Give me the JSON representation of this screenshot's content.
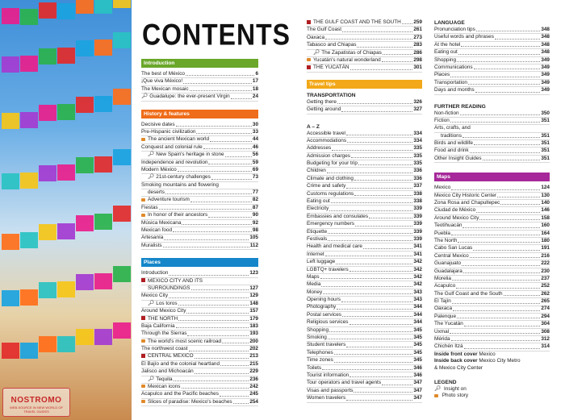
{
  "watermark": {
    "line1": "NOSTROMO",
    "line2": "WEB-SOURCE IN NEW WORLD OF TRAVEL GUIDES"
  },
  "title": "CONTENTS",
  "colors": {
    "introduction": "#6aa72a",
    "history": "#ef6c1a",
    "places": "#1586c9",
    "travel_tips": "#f2a818",
    "maps": "#a6289a",
    "region_marker": "#b01e23"
  },
  "introduction": {
    "heading": "Introduction",
    "entries": [
      {
        "label": "The best of México",
        "page": "6"
      },
      {
        "label": "¡Que viva México!",
        "page": "17"
      },
      {
        "label": "The Mexican mosaic",
        "page": "18"
      },
      {
        "label": "Guadalupe: the ever-present Virgin",
        "page": "24",
        "icon": "pin"
      }
    ]
  },
  "history": {
    "heading": "History & features",
    "entries": [
      {
        "label": "Decisive dates",
        "page": "30"
      },
      {
        "label": "Pre-Hispanic civilization",
        "page": "33"
      },
      {
        "label": "The ancient Mexican world",
        "page": "44",
        "icon": "camera"
      },
      {
        "label": "Conquest and colonial rule",
        "page": "46"
      },
      {
        "label": "New Spain's heritage in stone",
        "page": "56",
        "icon": "pin",
        "indent": true
      },
      {
        "label": "Independence and revolution",
        "page": "59"
      },
      {
        "label": "Modern México",
        "page": "69"
      },
      {
        "label": "21st-century challenges",
        "page": "73",
        "icon": "pin",
        "indent": true
      },
      {
        "label": "Smoking mountains and flowering",
        "page": ""
      },
      {
        "label": "deserts",
        "page": "77",
        "indent": true
      },
      {
        "label": "Adventure tourism",
        "page": "82",
        "icon": "camera"
      },
      {
        "label": "Fiestas",
        "page": "87"
      },
      {
        "label": "In honor of their ancestors",
        "page": "90",
        "icon": "camera"
      },
      {
        "label": "Música Mexicana",
        "page": "92"
      },
      {
        "label": "Mexican food",
        "page": "98"
      },
      {
        "label": "Artesanía",
        "page": "105"
      },
      {
        "label": "Muralists",
        "page": "112"
      }
    ]
  },
  "places": {
    "heading": "Places",
    "entries": [
      {
        "label": "Introduction",
        "page": "123"
      },
      {
        "label": "MEXICO CITY AND ITS",
        "page": "",
        "icon": "square"
      },
      {
        "label": "SURROUNDINGS",
        "page": "127",
        "indent": true
      },
      {
        "label": "Mexico City",
        "page": "129"
      },
      {
        "label": "Los toros",
        "page": "148",
        "icon": "pin",
        "indent": true
      },
      {
        "label": "Around Mexico City",
        "page": "157"
      },
      {
        "label": "THE NORTH",
        "page": "179",
        "icon": "square"
      },
      {
        "label": "Baja California",
        "page": "183"
      },
      {
        "label": "Through the Sierras",
        "page": "193"
      },
      {
        "label": "The world's most scenic railroad",
        "page": "200",
        "icon": "camera"
      },
      {
        "label": "The northwest coast",
        "page": "202"
      },
      {
        "label": "CENTRAL MEXICO",
        "page": "213",
        "icon": "square"
      },
      {
        "label": "El Bajío and the colonial heartland",
        "page": "215"
      },
      {
        "label": "Jalisco and Michoacán",
        "page": "229"
      },
      {
        "label": "Tequila",
        "page": "236",
        "icon": "pin",
        "indent": true
      },
      {
        "label": "Mexican icons",
        "page": "242",
        "icon": "camera"
      },
      {
        "label": "Acapulco and the Pacific beaches",
        "page": "245"
      },
      {
        "label": "Slices of paradise: Mexico's beaches",
        "page": "254",
        "icon": "camera"
      }
    ]
  },
  "places_cont": {
    "entries": [
      {
        "label": "THE GULF COAST AND THE SOUTH",
        "page": "259",
        "icon": "square"
      },
      {
        "label": "The Gulf Coast",
        "page": "261"
      },
      {
        "label": "Oaxaca",
        "page": "273"
      },
      {
        "label": "Tabasco and Chiapas",
        "page": "283"
      },
      {
        "label": "The Zapatistas of Chiapas",
        "page": "286",
        "icon": "pin",
        "indent": true
      },
      {
        "label": "Yucatán's natural wonderland",
        "page": "298",
        "icon": "camera"
      },
      {
        "label": "THE YUCATÁN",
        "page": "301",
        "icon": "square"
      }
    ]
  },
  "travel_tips": {
    "heading": "Travel tips",
    "transport_heading": "TRANSPORTATION",
    "transport": [
      {
        "label": "Getting there",
        "page": "326"
      },
      {
        "label": "Getting around",
        "page": "327"
      }
    ],
    "az_heading": "A – Z",
    "az": [
      {
        "label": "Accessible travel",
        "page": "334"
      },
      {
        "label": "Accommodations",
        "page": "334"
      },
      {
        "label": "Addresses",
        "page": "335"
      },
      {
        "label": "Admission charges",
        "page": "335"
      },
      {
        "label": "Budgeting for your trip",
        "page": "335"
      },
      {
        "label": "Children",
        "page": "336"
      },
      {
        "label": "Climate and clothing",
        "page": "336"
      },
      {
        "label": "Crime and safety",
        "page": "337"
      },
      {
        "label": "Customs regulations",
        "page": "338"
      },
      {
        "label": "Eating out",
        "page": "338"
      },
      {
        "label": "Electricity",
        "page": "339"
      },
      {
        "label": "Embassies and consulates",
        "page": "339"
      },
      {
        "label": "Emergency numbers",
        "page": "339"
      },
      {
        "label": "Etiquette",
        "page": "339"
      },
      {
        "label": "Festivals",
        "page": "339"
      },
      {
        "label": "Health and medical care",
        "page": "341"
      },
      {
        "label": "Internet",
        "page": "341"
      },
      {
        "label": "Left luggage",
        "page": "342"
      },
      {
        "label": "LGBTQ+ travelers",
        "page": "342"
      },
      {
        "label": "Maps",
        "page": "342"
      },
      {
        "label": "Media",
        "page": "342"
      },
      {
        "label": "Money",
        "page": "343"
      },
      {
        "label": "Opening hours",
        "page": "343"
      },
      {
        "label": "Photography",
        "page": "344"
      },
      {
        "label": "Postal services",
        "page": "344"
      },
      {
        "label": "Religious services",
        "page": "344"
      },
      {
        "label": "Shopping",
        "page": "345"
      },
      {
        "label": "Smoking",
        "page": "345"
      },
      {
        "label": "Student travelers",
        "page": "345"
      },
      {
        "label": "Telephones",
        "page": "345"
      },
      {
        "label": "Time zones",
        "page": "345"
      },
      {
        "label": "Toilets",
        "page": "346"
      },
      {
        "label": "Tourist information",
        "page": "346"
      },
      {
        "label": "Tour operators and travel agents",
        "page": "347"
      },
      {
        "label": "Visas and passports",
        "page": "347"
      },
      {
        "label": "Women travelers",
        "page": "347"
      }
    ]
  },
  "language": {
    "heading": "LANGUAGE",
    "entries": [
      {
        "label": "Pronunciation tips",
        "page": "348"
      },
      {
        "label": "Useful words and phrases",
        "page": "348"
      },
      {
        "label": "At the hotel",
        "page": "348"
      },
      {
        "label": "Eating out",
        "page": "348"
      },
      {
        "label": "Shopping",
        "page": "349"
      },
      {
        "label": "Communications",
        "page": "349"
      },
      {
        "label": "Places",
        "page": "349"
      },
      {
        "label": "Transportation",
        "page": "349"
      },
      {
        "label": "Days and months",
        "page": "349"
      }
    ]
  },
  "further_reading": {
    "heading": "FURTHER READING",
    "entries": [
      {
        "label": "Non-fiction",
        "page": "350"
      },
      {
        "label": "Fiction",
        "page": "351"
      },
      {
        "label": "Arts, crafts, and",
        "page": ""
      },
      {
        "label": "traditions",
        "page": "351",
        "indent": true
      },
      {
        "label": "Birds and wildlife",
        "page": "351"
      },
      {
        "label": "Food and drink",
        "page": "351"
      },
      {
        "label": "Other Insight Guides",
        "page": "351"
      }
    ]
  },
  "maps": {
    "heading": "Maps",
    "entries": [
      {
        "label": "Mexico",
        "page": "124"
      },
      {
        "label": "Mexico City Historic Center",
        "page": "130"
      },
      {
        "label": "Zona Rosa and Chapultepec",
        "page": "140"
      },
      {
        "label": "Ciudad de México",
        "page": "146"
      },
      {
        "label": "Around Mexico City",
        "page": "158"
      },
      {
        "label": "Teotihuacán",
        "page": "160"
      },
      {
        "label": "Puebla",
        "page": "164"
      },
      {
        "label": "The North",
        "page": "180"
      },
      {
        "label": "Cabo San Lucas",
        "page": "191"
      },
      {
        "label": "Central Mexico",
        "page": "216"
      },
      {
        "label": "Guanajuato",
        "page": "222"
      },
      {
        "label": "Guadalajara",
        "page": "230"
      },
      {
        "label": "Morelia",
        "page": "237"
      },
      {
        "label": "Acapulco",
        "page": "252"
      },
      {
        "label": "The Gulf Coast and the South",
        "page": "262"
      },
      {
        "label": "El Tajín",
        "page": "265"
      },
      {
        "label": "Oaxaca",
        "page": "274"
      },
      {
        "label": "Palenque",
        "page": "294"
      },
      {
        "label": "The Yucatán",
        "page": "304"
      },
      {
        "label": "Uxmal",
        "page": "308"
      },
      {
        "label": "Mérida",
        "page": "312"
      },
      {
        "label": "Chichén Itzá",
        "page": "314"
      }
    ],
    "front_cover_label": "Inside front cover",
    "front_cover_value": "Mexico",
    "back_cover_label": "Inside back cover",
    "back_cover_value": "Mexico City Metro",
    "back_cover_value2": "& Mexico City Center"
  },
  "legend": {
    "heading": "LEGEND",
    "insight": "Insight on",
    "photo": "Photo story"
  }
}
